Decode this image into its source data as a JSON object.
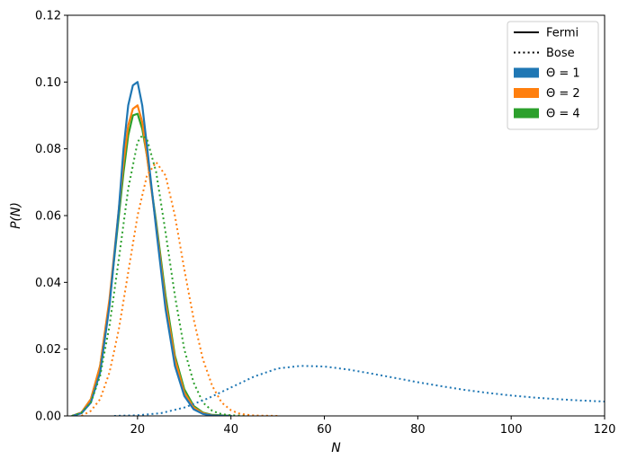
{
  "chart_data": {
    "type": "line",
    "title": "",
    "xlabel": "N",
    "ylabel": "P(N)",
    "xlim": [
      5,
      120
    ],
    "ylim": [
      0,
      0.12
    ],
    "xticks": [
      20,
      40,
      60,
      80,
      100,
      120
    ],
    "yticks": [
      0.0,
      0.02,
      0.04,
      0.06,
      0.08,
      0.1,
      0.12
    ],
    "xtick_labels": [
      "20",
      "40",
      "60",
      "80",
      "100",
      "120"
    ],
    "ytick_labels": [
      "0.00",
      "0.02",
      "0.04",
      "0.06",
      "0.08",
      "0.10",
      "0.12"
    ],
    "grid": false,
    "legend": {
      "placement": "top-right",
      "entries": [
        {
          "label": "Fermi",
          "kind": "line-solid",
          "color": "#000000"
        },
        {
          "label": "Bose",
          "kind": "line-dotted",
          "color": "#000000"
        },
        {
          "label": "Θ = 1",
          "kind": "patch",
          "color": "#1f77b4"
        },
        {
          "label": "Θ = 2",
          "kind": "patch",
          "color": "#ff7f0e"
        },
        {
          "label": "Θ = 4",
          "kind": "patch",
          "color": "#2ca02c"
        }
      ]
    },
    "series": [
      {
        "name": "Θ = 4",
        "statistics": "Fermi",
        "color": "#2ca02c",
        "style": "solid",
        "x": [
          6,
          8,
          10,
          12,
          14,
          16,
          17,
          18,
          19,
          20,
          21,
          22,
          24,
          26,
          28,
          30,
          32,
          34,
          36,
          40
        ],
        "y": [
          0.0,
          0.001,
          0.005,
          0.015,
          0.034,
          0.06,
          0.073,
          0.084,
          0.09,
          0.0905,
          0.086,
          0.078,
          0.058,
          0.036,
          0.018,
          0.008,
          0.003,
          0.001,
          0.0003,
          0.0
        ]
      },
      {
        "name": "Θ = 2",
        "statistics": "Fermi",
        "color": "#ff7f0e",
        "style": "solid",
        "x": [
          6,
          8,
          10,
          12,
          14,
          16,
          17,
          18,
          19,
          20,
          21,
          22,
          24,
          26,
          28,
          30,
          32,
          34,
          36,
          40
        ],
        "y": [
          0.0,
          0.001,
          0.005,
          0.015,
          0.035,
          0.062,
          0.076,
          0.087,
          0.092,
          0.093,
          0.088,
          0.078,
          0.057,
          0.034,
          0.017,
          0.007,
          0.0025,
          0.0008,
          0.0002,
          0.0
        ]
      },
      {
        "name": "Θ = 1",
        "statistics": "Fermi",
        "color": "#1f77b4",
        "style": "solid",
        "x": [
          6,
          8,
          10,
          12,
          14,
          16,
          17,
          18,
          19,
          20,
          21,
          22,
          24,
          26,
          28,
          30,
          32,
          34,
          36,
          40
        ],
        "y": [
          0.0,
          0.0008,
          0.004,
          0.013,
          0.033,
          0.062,
          0.08,
          0.093,
          0.099,
          0.1,
          0.093,
          0.081,
          0.056,
          0.032,
          0.015,
          0.006,
          0.002,
          0.0006,
          0.0001,
          0.0
        ]
      },
      {
        "name": "Θ = 4",
        "statistics": "Bose",
        "color": "#2ca02c",
        "style": "dotted",
        "x": [
          6,
          8,
          10,
          12,
          14,
          16,
          18,
          20,
          21,
          22,
          24,
          26,
          28,
          30,
          32,
          34,
          36,
          38,
          40,
          44
        ],
        "y": [
          0.0,
          0.001,
          0.004,
          0.012,
          0.027,
          0.047,
          0.068,
          0.082,
          0.084,
          0.083,
          0.073,
          0.055,
          0.036,
          0.02,
          0.01,
          0.004,
          0.0015,
          0.0005,
          0.0002,
          0.0
        ]
      },
      {
        "name": "Θ = 2",
        "statistics": "Bose",
        "color": "#ff7f0e",
        "style": "dotted",
        "x": [
          8,
          10,
          12,
          14,
          16,
          18,
          20,
          22,
          24,
          26,
          28,
          30,
          32,
          34,
          36,
          38,
          40,
          42,
          45,
          50
        ],
        "y": [
          0.0,
          0.0015,
          0.005,
          0.013,
          0.026,
          0.043,
          0.06,
          0.072,
          0.076,
          0.072,
          0.06,
          0.044,
          0.029,
          0.017,
          0.009,
          0.004,
          0.0017,
          0.0006,
          0.0001,
          0.0
        ]
      },
      {
        "name": "Θ = 1",
        "statistics": "Bose",
        "color": "#1f77b4",
        "style": "dotted",
        "x": [
          15,
          20,
          25,
          30,
          35,
          40,
          45,
          50,
          55,
          60,
          65,
          70,
          75,
          80,
          85,
          90,
          95,
          100,
          105,
          110,
          115,
          120
        ],
        "y": [
          0.0,
          0.0002,
          0.0008,
          0.0025,
          0.0052,
          0.0085,
          0.0118,
          0.0142,
          0.015,
          0.0148,
          0.0139,
          0.0127,
          0.0114,
          0.0101,
          0.0089,
          0.0078,
          0.0069,
          0.0061,
          0.0055,
          0.005,
          0.0046,
          0.0043
        ]
      }
    ]
  }
}
